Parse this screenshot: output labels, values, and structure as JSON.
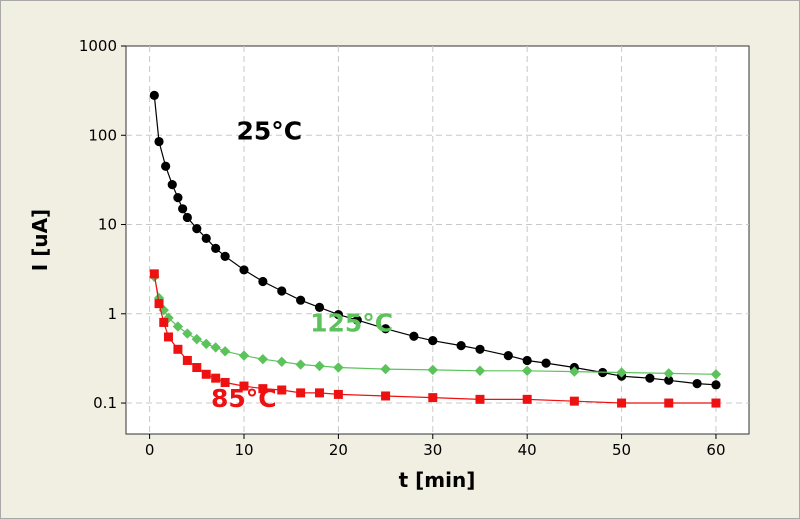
{
  "chart_data": {
    "type": "scatter",
    "xlabel": "t [min]",
    "ylabel": "I [uA]",
    "xlim": [
      -2.5,
      63.5
    ],
    "ylim": [
      0.045,
      1000
    ],
    "yscale": "log",
    "x_ticks": [
      0,
      10,
      20,
      30,
      40,
      50,
      60
    ],
    "y_ticks": [
      1000,
      100,
      10,
      1,
      0.1
    ],
    "y_tick_labels": [
      "1000",
      "100",
      "10",
      "1",
      "0.1"
    ],
    "grid": true,
    "legend": "none",
    "series": [
      {
        "name": "25°C",
        "color": "#000000",
        "marker": "circle",
        "points": [
          [
            0.5,
            280
          ],
          [
            1,
            85
          ],
          [
            1.7,
            45
          ],
          [
            2.4,
            28
          ],
          [
            3,
            20
          ],
          [
            3.5,
            15
          ],
          [
            4,
            12
          ],
          [
            5,
            9
          ],
          [
            6,
            7
          ],
          [
            7,
            5.4
          ],
          [
            8,
            4.4
          ],
          [
            10,
            3.1
          ],
          [
            12,
            2.3
          ],
          [
            14,
            1.8
          ],
          [
            16,
            1.42
          ],
          [
            18,
            1.18
          ],
          [
            20,
            0.98
          ],
          [
            22,
            0.85
          ],
          [
            25,
            0.68
          ],
          [
            28,
            0.56
          ],
          [
            30,
            0.5
          ],
          [
            33,
            0.44
          ],
          [
            35,
            0.4
          ],
          [
            38,
            0.34
          ],
          [
            40,
            0.3
          ],
          [
            42,
            0.28
          ],
          [
            45,
            0.25
          ],
          [
            48,
            0.22
          ],
          [
            50,
            0.2
          ],
          [
            53,
            0.19
          ],
          [
            55,
            0.18
          ],
          [
            58,
            0.165
          ],
          [
            60,
            0.16
          ]
        ]
      },
      {
        "name": "125°C",
        "color": "#5cc35c",
        "marker": "diamond",
        "points": [
          [
            0.5,
            2.6
          ],
          [
            1,
            1.5
          ],
          [
            1.5,
            1.1
          ],
          [
            2,
            0.9
          ],
          [
            3,
            0.72
          ],
          [
            4,
            0.6
          ],
          [
            5,
            0.52
          ],
          [
            6,
            0.46
          ],
          [
            7,
            0.42
          ],
          [
            8,
            0.38
          ],
          [
            10,
            0.34
          ],
          [
            12,
            0.31
          ],
          [
            14,
            0.29
          ],
          [
            16,
            0.27
          ],
          [
            18,
            0.26
          ],
          [
            20,
            0.25
          ],
          [
            25,
            0.24
          ],
          [
            30,
            0.235
          ],
          [
            35,
            0.23
          ],
          [
            40,
            0.23
          ],
          [
            45,
            0.225
          ],
          [
            50,
            0.22
          ],
          [
            55,
            0.215
          ],
          [
            60,
            0.21
          ]
        ]
      },
      {
        "name": "85°C",
        "color": "#ee1111",
        "marker": "square",
        "points": [
          [
            0.5,
            2.8
          ],
          [
            1,
            1.3
          ],
          [
            1.5,
            0.8
          ],
          [
            2,
            0.55
          ],
          [
            3,
            0.4
          ],
          [
            4,
            0.3
          ],
          [
            5,
            0.25
          ],
          [
            6,
            0.21
          ],
          [
            7,
            0.19
          ],
          [
            8,
            0.17
          ],
          [
            10,
            0.155
          ],
          [
            12,
            0.145
          ],
          [
            14,
            0.14
          ],
          [
            16,
            0.13
          ],
          [
            18,
            0.13
          ],
          [
            20,
            0.125
          ],
          [
            25,
            0.12
          ],
          [
            30,
            0.115
          ],
          [
            35,
            0.11
          ],
          [
            40,
            0.11
          ],
          [
            45,
            0.105
          ],
          [
            50,
            0.1
          ],
          [
            55,
            0.1
          ],
          [
            60,
            0.1
          ]
        ]
      }
    ],
    "annotations": [
      {
        "text": "25°C",
        "color": "#000000",
        "x": 9.2,
        "y": 90
      },
      {
        "text": "125°C",
        "color": "#5cc35c",
        "x": 17,
        "y": 0.63
      },
      {
        "text": "85°C",
        "color": "#ee1111",
        "x": 6.5,
        "y": 0.09
      }
    ]
  }
}
